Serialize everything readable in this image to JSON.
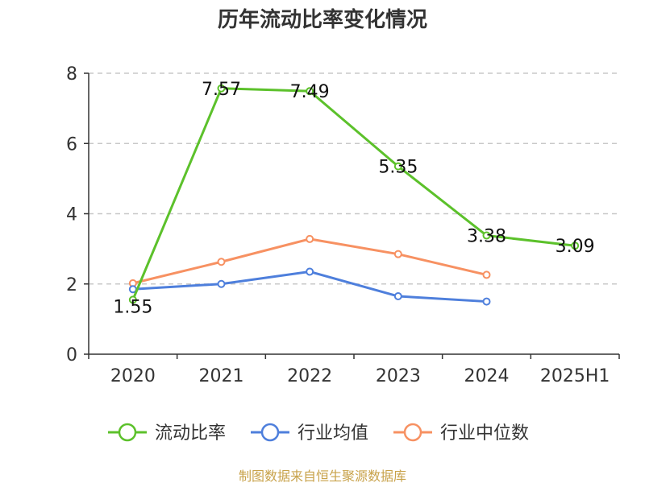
{
  "chart_data": {
    "type": "line",
    "title": "历年流动比率变化情况",
    "categories": [
      "2020",
      "2021",
      "2022",
      "2023",
      "2024",
      "2025H1"
    ],
    "ylim": [
      0,
      8
    ],
    "yticks": [
      0,
      2,
      4,
      6,
      8
    ],
    "grid": true,
    "legend_position": "bottom",
    "series": [
      {
        "name": "流动比率",
        "color": "#5cc12b",
        "values": [
          1.55,
          7.57,
          7.49,
          5.35,
          3.38,
          3.09
        ],
        "labels": [
          "1.55",
          "7.57",
          "7.49",
          "5.35",
          "3.38",
          "3.09"
        ]
      },
      {
        "name": "行业均值",
        "color": "#4e7fdc",
        "values": [
          1.85,
          2.0,
          2.35,
          1.65,
          1.5,
          null
        ]
      },
      {
        "name": "行业中位数",
        "color": "#f79162",
        "values": [
          2.02,
          2.63,
          3.28,
          2.85,
          2.26,
          null
        ]
      }
    ]
  },
  "source": "制图数据来自恒生聚源数据库"
}
